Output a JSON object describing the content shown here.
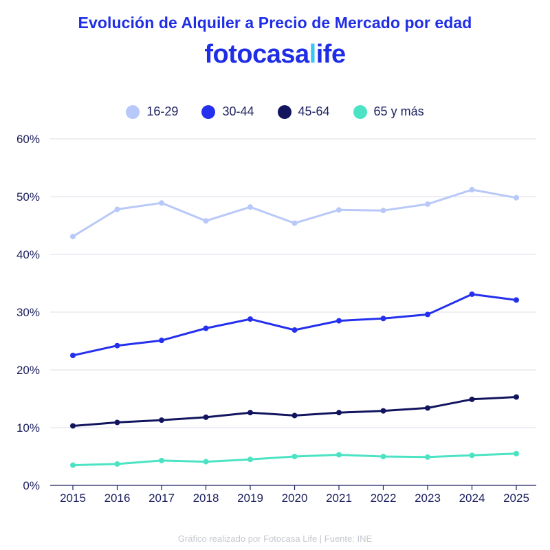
{
  "title": "Evolución de Alquiler a Precio de Mercado por edad",
  "brand": {
    "name": "fotocasa",
    "suffix_first": "l",
    "suffix_rest": "ife"
  },
  "footer": "Gráfico realizado por Fotocasa Life | Fuente: INE",
  "chart_data": {
    "type": "line",
    "title": "Evolución de Alquiler a Precio de Mercado por edad",
    "xlabel": "",
    "ylabel": "",
    "x": [
      "2015",
      "2016",
      "2017",
      "2018",
      "2019",
      "2020",
      "2021",
      "2022",
      "2023",
      "2024",
      "2025"
    ],
    "ylim": [
      0,
      60
    ],
    "yticks": [
      0,
      10,
      20,
      30,
      40,
      50,
      60
    ],
    "ytick_labels": [
      "0%",
      "10%",
      "20%",
      "30%",
      "40%",
      "50%",
      "60%"
    ],
    "grid": "horizontal",
    "legend_position": "top-center",
    "series": [
      {
        "name": "16-29",
        "color": "#b8c8f8",
        "values": [
          43.1,
          47.8,
          48.9,
          45.8,
          48.2,
          45.4,
          47.7,
          47.6,
          48.7,
          51.2,
          49.8
        ]
      },
      {
        "name": "30-44",
        "color": "#2430ee",
        "values": [
          22.5,
          24.2,
          25.1,
          27.2,
          28.8,
          26.9,
          28.5,
          28.9,
          29.6,
          33.1,
          32.1
        ]
      },
      {
        "name": "45-64",
        "color": "#12155e",
        "values": [
          10.3,
          10.9,
          11.3,
          11.8,
          12.6,
          12.1,
          12.6,
          12.9,
          13.4,
          14.9,
          15.3
        ]
      },
      {
        "name": "65 y más",
        "color": "#4be3c3",
        "values": [
          3.5,
          3.7,
          4.3,
          4.1,
          4.5,
          5.0,
          5.3,
          5.0,
          4.9,
          5.2,
          5.5
        ]
      }
    ]
  }
}
